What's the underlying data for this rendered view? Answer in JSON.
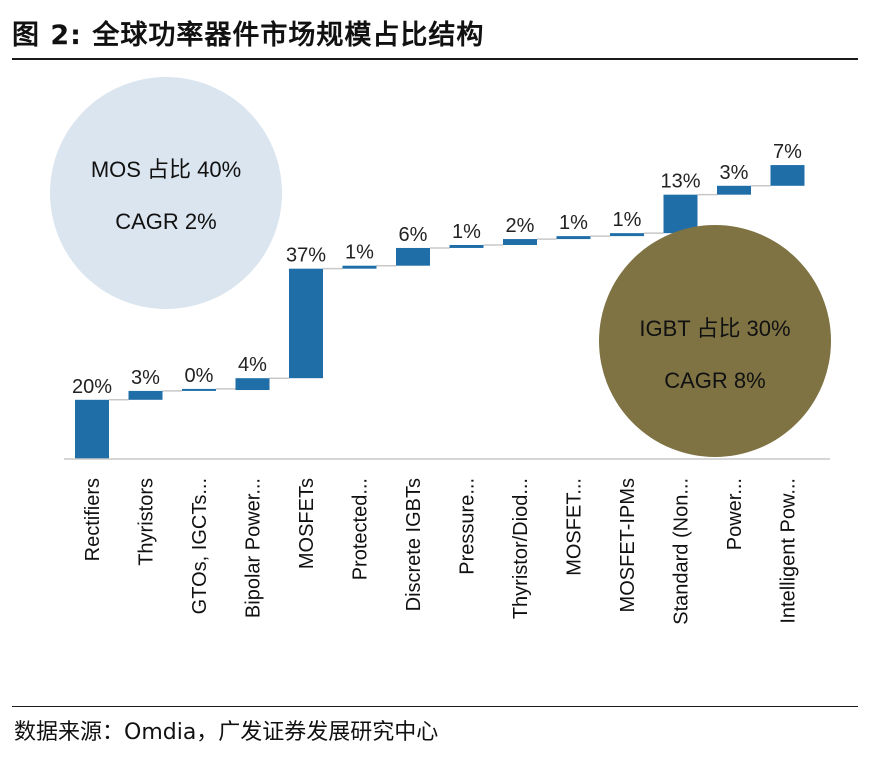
{
  "header": {
    "title": "图  2:  全球功率器件市场规模占比结构"
  },
  "footer": {
    "source": "数据来源：Omdia，广发证券发展研究中心"
  },
  "colors": {
    "bar": "#1f6ea8",
    "mos_bubble": "#dbe5ef",
    "igbt_bubble": "#7f7344",
    "connector": "#c8c8c8"
  },
  "annotations": {
    "mos": {
      "line1": "MOS 占比 40%",
      "line2": "CAGR 2%"
    },
    "igbt": {
      "line1": "IGBT 占比 30%",
      "line2": "CAGR 8%"
    }
  },
  "chart_data": {
    "type": "waterfall",
    "title": "全球功率器件市场规模占比结构",
    "categories": [
      "Rectifiers",
      "Thyristors",
      "GTOs, IGCTs...",
      "Bipolar Power...",
      "MOSFETs",
      "Protected...",
      "Discrete IGBTs",
      "Pressure...",
      "Thyristor/Diod...",
      "MOSFET...",
      "MOSFET-IPMs",
      "Standard (Non...",
      "Power...",
      "Intelligent Pow..."
    ],
    "values": [
      20,
      3,
      0.3,
      4,
      37,
      1,
      6,
      1,
      2,
      1,
      1,
      13,
      3,
      7
    ],
    "value_labels": [
      "20%",
      "3%",
      "0%",
      "4%",
      "37%",
      "1%",
      "6%",
      "1%",
      "2%",
      "1%",
      "1%",
      "13%",
      "3%",
      "7%"
    ],
    "unit": "%",
    "ylim": [
      0,
      100
    ],
    "xlabel": "",
    "ylabel": "",
    "grid": false,
    "legend": "none"
  }
}
